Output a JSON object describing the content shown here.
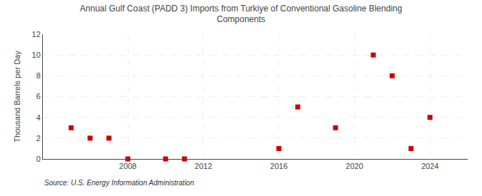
{
  "chart_data": {
    "type": "scatter",
    "title": "Annual Gulf Coast (PADD 3) Imports from Turkiye of Conventional Gasoline Blending\nComponents",
    "ylabel": "Thousand Barrels per Day",
    "annotations": [
      "Source: U.S. Energy Information Administration"
    ],
    "x": [
      2005,
      2006,
      2007,
      2008,
      2010,
      2011,
      2016,
      2017,
      2019,
      2021,
      2022,
      2023,
      2024
    ],
    "values": [
      3,
      2,
      2,
      0,
      0,
      0,
      1,
      5,
      3,
      10,
      8,
      1,
      4
    ],
    "color": "#cc0000",
    "marker": "square",
    "xlim": [
      2003.5,
      2026
    ],
    "xticks": [
      2008,
      2012,
      2016,
      2020,
      2024
    ],
    "ylim": [
      0,
      12
    ],
    "yticks": [
      0,
      2,
      4,
      6,
      8,
      10,
      12
    ],
    "grid": true
  }
}
